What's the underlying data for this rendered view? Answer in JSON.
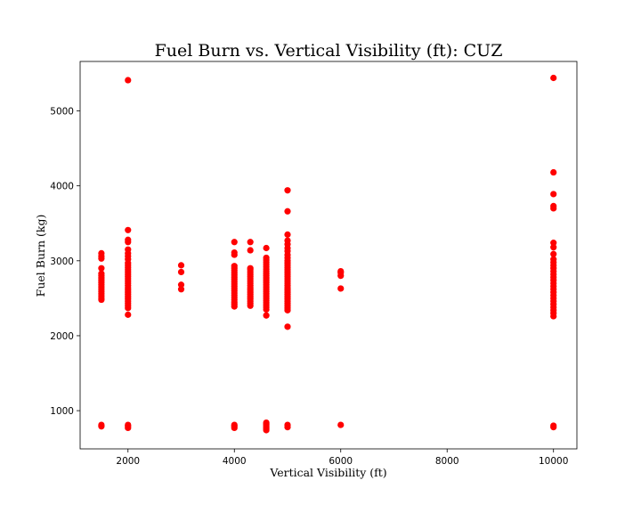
{
  "chart_data": {
    "type": "scatter",
    "title": "Fuel Burn vs. Vertical Visibility (ft): CUZ",
    "xlabel": "Vertical Visibility (ft)",
    "ylabel": "Fuel Burn (kg)",
    "xlim": [
      1100,
      10440
    ],
    "ylim": [
      490,
      5660
    ],
    "xticks": [
      2000,
      4000,
      6000,
      8000,
      10000
    ],
    "yticks": [
      1000,
      2000,
      3000,
      4000,
      5000
    ],
    "grid": false,
    "point_color": "#ff0000",
    "series": [
      {
        "points": [
          [
            1500,
            790
          ],
          [
            1500,
            810
          ],
          [
            1500,
            2480
          ],
          [
            1500,
            2500
          ],
          [
            1500,
            2530
          ],
          [
            1500,
            2560
          ],
          [
            1500,
            2590
          ],
          [
            1500,
            2620
          ],
          [
            1500,
            2650
          ],
          [
            1500,
            2680
          ],
          [
            1500,
            2710
          ],
          [
            1500,
            2740
          ],
          [
            1500,
            2770
          ],
          [
            1500,
            2800
          ],
          [
            1500,
            2830
          ],
          [
            1500,
            2900
          ],
          [
            1500,
            3030
          ],
          [
            1500,
            3060
          ],
          [
            1500,
            3100
          ],
          [
            2000,
            770
          ],
          [
            2000,
            790
          ],
          [
            2000,
            810
          ],
          [
            2000,
            2280
          ],
          [
            2000,
            2370
          ],
          [
            2000,
            2400
          ],
          [
            2000,
            2430
          ],
          [
            2000,
            2460
          ],
          [
            2000,
            2490
          ],
          [
            2000,
            2520
          ],
          [
            2000,
            2550
          ],
          [
            2000,
            2580
          ],
          [
            2000,
            2610
          ],
          [
            2000,
            2640
          ],
          [
            2000,
            2670
          ],
          [
            2000,
            2700
          ],
          [
            2000,
            2730
          ],
          [
            2000,
            2760
          ],
          [
            2000,
            2790
          ],
          [
            2000,
            2820
          ],
          [
            2000,
            2850
          ],
          [
            2000,
            2880
          ],
          [
            2000,
            2910
          ],
          [
            2000,
            2940
          ],
          [
            2000,
            2970
          ],
          [
            2000,
            3020
          ],
          [
            2000,
            3060
          ],
          [
            2000,
            3100
          ],
          [
            2000,
            3150
          ],
          [
            2000,
            3250
          ],
          [
            2000,
            3280
          ],
          [
            2000,
            3410
          ],
          [
            2000,
            5410
          ],
          [
            3000,
            2620
          ],
          [
            3000,
            2680
          ],
          [
            3000,
            2850
          ],
          [
            3000,
            2940
          ],
          [
            4000,
            770
          ],
          [
            4000,
            790
          ],
          [
            4000,
            810
          ],
          [
            4000,
            2390
          ],
          [
            4000,
            2420
          ],
          [
            4000,
            2450
          ],
          [
            4000,
            2480
          ],
          [
            4000,
            2510
          ],
          [
            4000,
            2540
          ],
          [
            4000,
            2570
          ],
          [
            4000,
            2600
          ],
          [
            4000,
            2630
          ],
          [
            4000,
            2660
          ],
          [
            4000,
            2690
          ],
          [
            4000,
            2720
          ],
          [
            4000,
            2750
          ],
          [
            4000,
            2780
          ],
          [
            4000,
            2810
          ],
          [
            4000,
            2840
          ],
          [
            4000,
            2870
          ],
          [
            4000,
            2900
          ],
          [
            4000,
            2930
          ],
          [
            4000,
            3080
          ],
          [
            4000,
            3110
          ],
          [
            4000,
            3250
          ],
          [
            4300,
            2400
          ],
          [
            4300,
            2430
          ],
          [
            4300,
            2460
          ],
          [
            4300,
            2490
          ],
          [
            4300,
            2520
          ],
          [
            4300,
            2550
          ],
          [
            4300,
            2580
          ],
          [
            4300,
            2610
          ],
          [
            4300,
            2640
          ],
          [
            4300,
            2670
          ],
          [
            4300,
            2700
          ],
          [
            4300,
            2730
          ],
          [
            4300,
            2760
          ],
          [
            4300,
            2790
          ],
          [
            4300,
            2820
          ],
          [
            4300,
            2850
          ],
          [
            4300,
            2880
          ],
          [
            4300,
            2900
          ],
          [
            4300,
            3140
          ],
          [
            4300,
            3250
          ],
          [
            4600,
            740
          ],
          [
            4600,
            760
          ],
          [
            4600,
            780
          ],
          [
            4600,
            800
          ],
          [
            4600,
            820
          ],
          [
            4600,
            840
          ],
          [
            4600,
            2270
          ],
          [
            4600,
            2350
          ],
          [
            4600,
            2380
          ],
          [
            4600,
            2410
          ],
          [
            4600,
            2440
          ],
          [
            4600,
            2470
          ],
          [
            4600,
            2500
          ],
          [
            4600,
            2530
          ],
          [
            4600,
            2560
          ],
          [
            4600,
            2590
          ],
          [
            4600,
            2620
          ],
          [
            4600,
            2650
          ],
          [
            4600,
            2680
          ],
          [
            4600,
            2710
          ],
          [
            4600,
            2740
          ],
          [
            4600,
            2770
          ],
          [
            4600,
            2800
          ],
          [
            4600,
            2830
          ],
          [
            4600,
            2860
          ],
          [
            4600,
            2890
          ],
          [
            4600,
            2920
          ],
          [
            4600,
            2950
          ],
          [
            4600,
            2980
          ],
          [
            4600,
            3010
          ],
          [
            4600,
            3040
          ],
          [
            4600,
            3170
          ],
          [
            5000,
            780
          ],
          [
            5000,
            810
          ],
          [
            5000,
            2120
          ],
          [
            5000,
            2340
          ],
          [
            5000,
            2370
          ],
          [
            5000,
            2400
          ],
          [
            5000,
            2430
          ],
          [
            5000,
            2460
          ],
          [
            5000,
            2490
          ],
          [
            5000,
            2520
          ],
          [
            5000,
            2550
          ],
          [
            5000,
            2580
          ],
          [
            5000,
            2610
          ],
          [
            5000,
            2640
          ],
          [
            5000,
            2670
          ],
          [
            5000,
            2700
          ],
          [
            5000,
            2730
          ],
          [
            5000,
            2760
          ],
          [
            5000,
            2790
          ],
          [
            5000,
            2820
          ],
          [
            5000,
            2850
          ],
          [
            5000,
            2880
          ],
          [
            5000,
            2910
          ],
          [
            5000,
            2940
          ],
          [
            5000,
            2970
          ],
          [
            5000,
            3000
          ],
          [
            5000,
            3040
          ],
          [
            5000,
            3080
          ],
          [
            5000,
            3130
          ],
          [
            5000,
            3170
          ],
          [
            5000,
            3220
          ],
          [
            5000,
            3270
          ],
          [
            5000,
            3350
          ],
          [
            5000,
            3660
          ],
          [
            5000,
            3940
          ],
          [
            6000,
            810
          ],
          [
            6000,
            2630
          ],
          [
            6000,
            2800
          ],
          [
            6000,
            2840
          ],
          [
            6000,
            2860
          ],
          [
            10000,
            780
          ],
          [
            10000,
            800
          ],
          [
            10000,
            2260
          ],
          [
            10000,
            2300
          ],
          [
            10000,
            2340
          ],
          [
            10000,
            2380
          ],
          [
            10000,
            2420
          ],
          [
            10000,
            2460
          ],
          [
            10000,
            2500
          ],
          [
            10000,
            2540
          ],
          [
            10000,
            2580
          ],
          [
            10000,
            2620
          ],
          [
            10000,
            2660
          ],
          [
            10000,
            2700
          ],
          [
            10000,
            2740
          ],
          [
            10000,
            2780
          ],
          [
            10000,
            2820
          ],
          [
            10000,
            2860
          ],
          [
            10000,
            2900
          ],
          [
            10000,
            2940
          ],
          [
            10000,
            2980
          ],
          [
            10000,
            3020
          ],
          [
            10000,
            3090
          ],
          [
            10000,
            3180
          ],
          [
            10000,
            3240
          ],
          [
            10000,
            3700
          ],
          [
            10000,
            3730
          ],
          [
            10000,
            3890
          ],
          [
            10000,
            4180
          ],
          [
            10000,
            5440
          ]
        ]
      }
    ]
  }
}
